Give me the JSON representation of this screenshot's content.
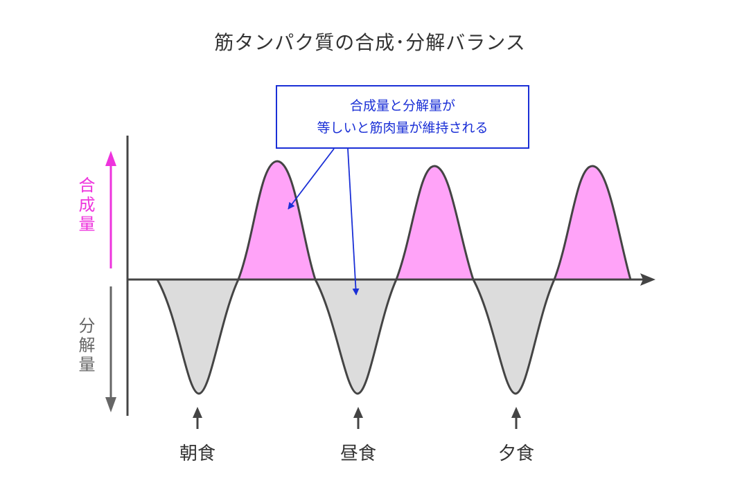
{
  "title": "筋タンパク質の合成･分解バランス",
  "callout": {
    "line1": "合成量と分解量が",
    "line2": "等しいと筋肉量が維持される"
  },
  "axis_labels": {
    "synthesis": "合成量",
    "degradation": "分解量"
  },
  "meals": {
    "breakfast": "朝食",
    "lunch": "昼食",
    "dinner": "夕食"
  },
  "colors": {
    "synthesis_fill": "#ffa3f8",
    "degradation_fill": "#dcdcdc",
    "curve": "#444444",
    "callout": "#1a2fd6",
    "synthesis_label": "#ee33dd",
    "degradation_label": "#666666"
  }
}
